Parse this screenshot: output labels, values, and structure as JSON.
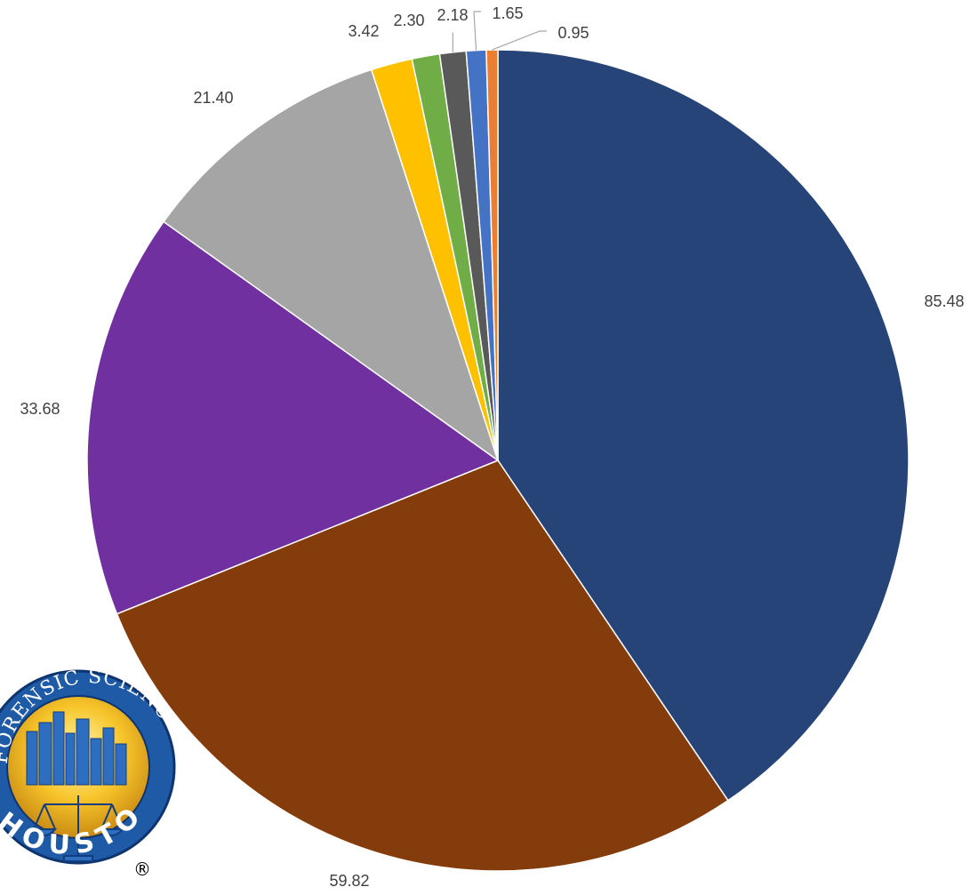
{
  "chart_data": {
    "type": "pie",
    "title": "",
    "values": [
      85.48,
      59.82,
      33.68,
      21.4,
      3.42,
      2.3,
      2.18,
      1.65,
      0.95
    ],
    "labels": [
      "85.48",
      "59.82",
      "33.68",
      "21.40",
      "3.42",
      "2.30",
      "2.18",
      "1.65",
      "0.95"
    ],
    "colors": [
      "#264478",
      "#843C0C",
      "#7030A0",
      "#A5A5A5",
      "#FFC000",
      "#70AD47",
      "#595959",
      "#4472C4",
      "#ED7D31"
    ],
    "start_angle": "12 o'clock",
    "direction": "clockwise",
    "legend": "none"
  },
  "logo": {
    "text_top": "FORENSIC SCIENCE CENTER",
    "text_bottom": "HOUSTON",
    "mark": "®"
  }
}
